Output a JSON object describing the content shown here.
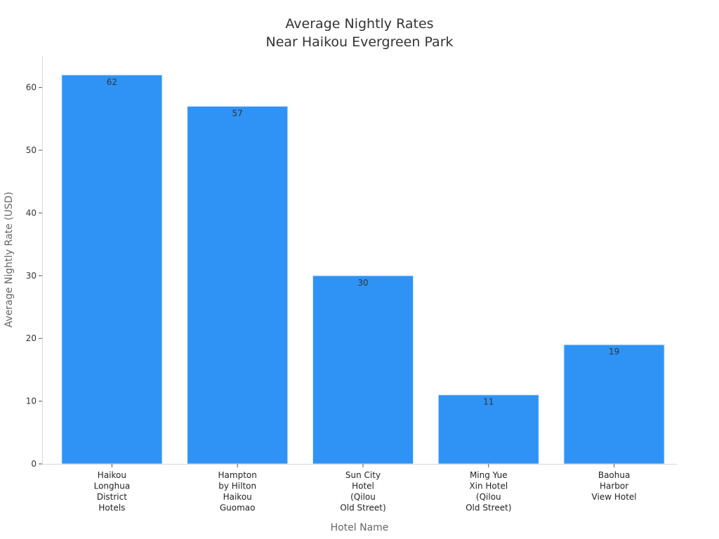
{
  "chart_data": {
    "type": "bar",
    "title_lines": [
      "Average Nightly Rates",
      "Near Haikou Evergreen Park"
    ],
    "xlabel": "Hotel Name",
    "ylabel": "Average Nightly Rate (USD)",
    "categories": [
      [
        "Haikou",
        "Longhua",
        "District",
        "Hotels"
      ],
      [
        "Hampton",
        "by Hilton",
        "Haikou",
        "Guomao"
      ],
      [
        "Sun City",
        "Hotel",
        "(Qilou",
        "Old Street)"
      ],
      [
        "Ming Yue",
        "Xin Hotel",
        "(Qilou",
        "Old Street)"
      ],
      [
        "Baohua",
        "Harbor",
        "View Hotel"
      ]
    ],
    "values": [
      62,
      57,
      30,
      11,
      19
    ],
    "ylim": [
      0,
      65
    ],
    "yticks": [
      0,
      10,
      20,
      30,
      40,
      50,
      60
    ],
    "bar_color": "#2e93f5",
    "bar_edge_color": "#d0e6fc",
    "grid": false,
    "legend": "none"
  }
}
